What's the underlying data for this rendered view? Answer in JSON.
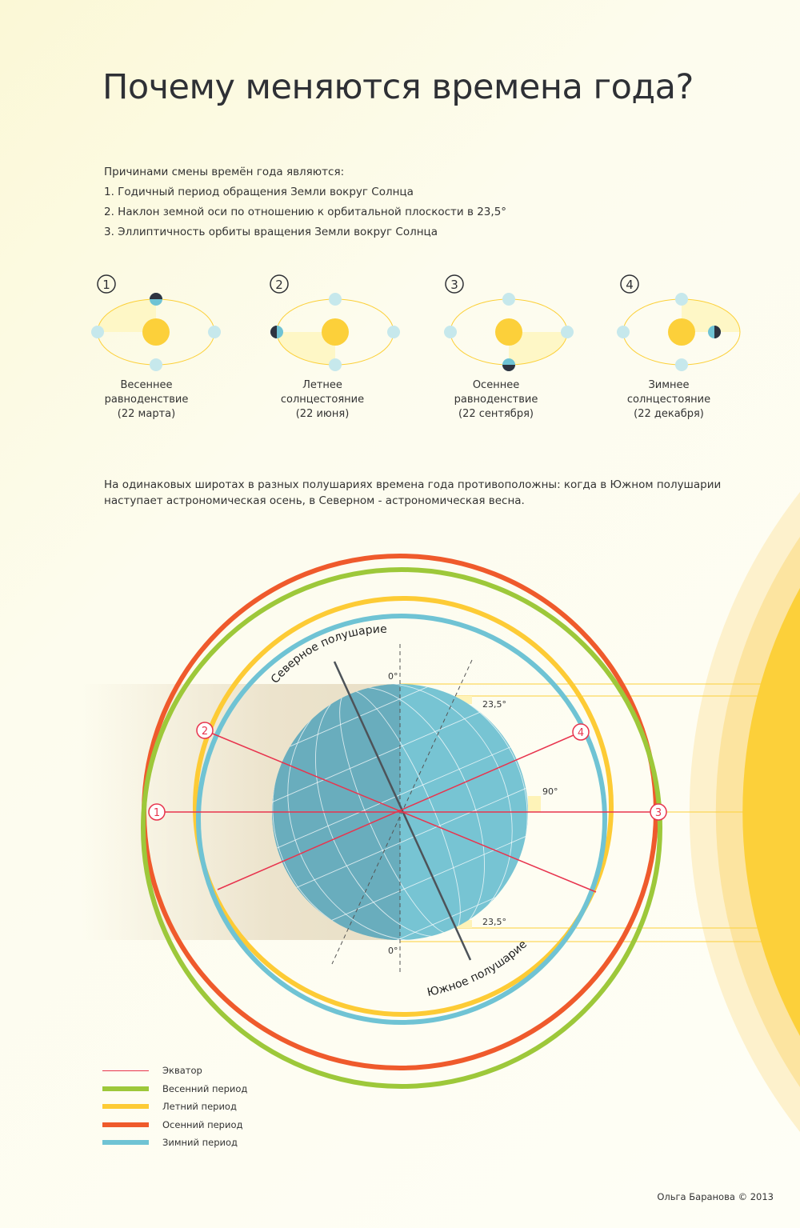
{
  "title": "Почему меняются времена года?",
  "intro": {
    "heading": "Причинами смены времён года являются:",
    "reasons": [
      "1. Годичный период обращения Земли вокруг Солнца",
      "2. Наклон земной оси по отношению к орбитальной плоскости в 23,5°",
      "3. Эллиптичность орбиты вращения Земли вокруг Солнца"
    ]
  },
  "positions": [
    {
      "number": "1",
      "line1": "Весеннее",
      "line2": "равноденствие",
      "line3": "(22 марта)"
    },
    {
      "number": "2",
      "line1": "Летнее",
      "line2": "солнцестояние",
      "line3": "(22 июня)"
    },
    {
      "number": "3",
      "line1": "Осеннее",
      "line2": "равноденствие",
      "line3": "(22 сентября)"
    },
    {
      "number": "4",
      "line1": "Зимнее",
      "line2": "солнцестояние",
      "line3": "(22 декабря)"
    }
  ],
  "note": "На одинаковых широтах в разных полушариях времена года противоположны: когда в Южном полушарии наступает астрономическая осень, в Северном - астрономическая весна.",
  "diagram": {
    "north_label": "Северное полушарие",
    "south_label": "Южное полушарие",
    "angle_top_zero": "0°",
    "angle_bottom_zero": "0°",
    "angle_top_tilt": "23,5°",
    "angle_bottom_tilt": "23,5°",
    "angle_right": "90°",
    "markers": [
      "1",
      "2",
      "3",
      "4"
    ]
  },
  "legend": [
    {
      "label": "Экватор",
      "color": "#e8344e"
    },
    {
      "label": "Весенний период",
      "color": "#9dc83a"
    },
    {
      "label": "Летний период",
      "color": "#fdcb35"
    },
    {
      "label": "Осенний период",
      "color": "#ef5a2c"
    },
    {
      "label": "Зимний период",
      "color": "#6fc3d4"
    }
  ],
  "footer": "Ольга Баранова © 2013"
}
